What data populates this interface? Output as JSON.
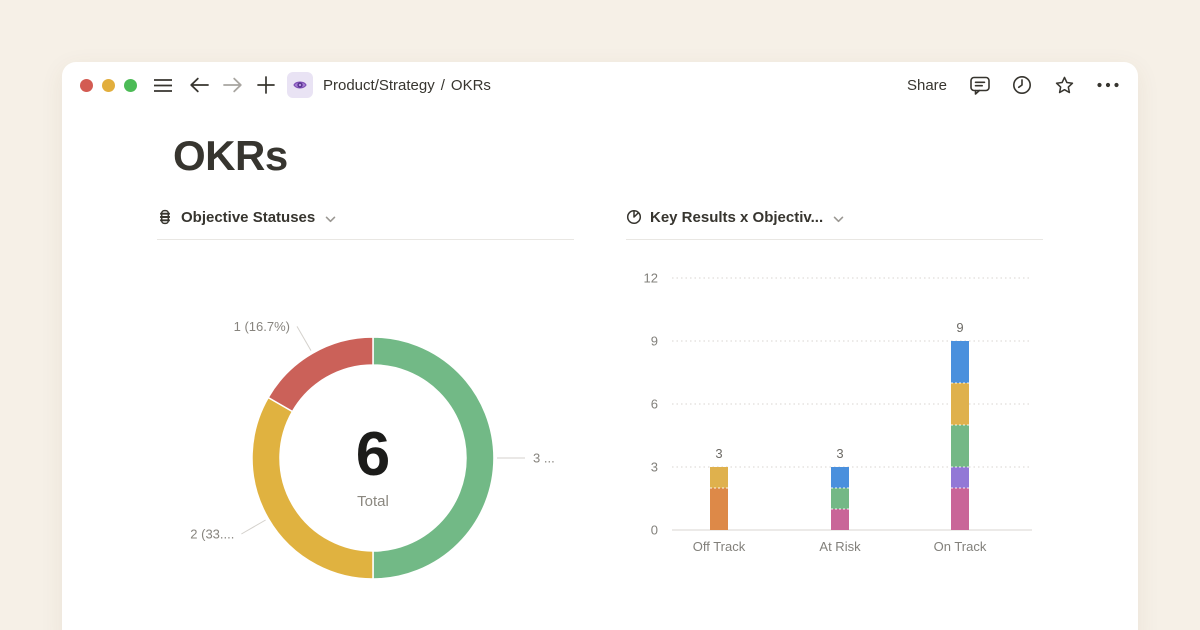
{
  "window": {
    "controls": {
      "close": "#d35b52",
      "minimize": "#e2ae3d",
      "zoom": "#4cbb56"
    },
    "nav": {
      "breadcrumb_path": "Product/Strategy",
      "breadcrumb_separator": "/",
      "breadcrumb_current": "OKRs"
    },
    "actions": {
      "share_label": "Share"
    }
  },
  "page": {
    "title": "OKRs"
  },
  "panels": [
    {
      "title": "Objective Statuses",
      "icon": "traffic-light-icon"
    },
    {
      "title": "Key Results x Objectiv...",
      "icon": "pie-chart-icon"
    }
  ],
  "chart_data": [
    {
      "type": "pie",
      "subtype": "donut",
      "title": "Objective Statuses",
      "center_value": "6",
      "center_label": "Total",
      "slices": [
        {
          "value": 3,
          "pct": 50.0,
          "color": "#72b986",
          "label": "3 ..."
        },
        {
          "value": 2,
          "pct": 33.3,
          "color": "#e0b240",
          "label": "2 (33...."
        },
        {
          "value": 1,
          "pct": 16.7,
          "color": "#cb6159",
          "label": "1 (16.7%)"
        }
      ]
    },
    {
      "type": "bar",
      "stacked": true,
      "title": "Key Results x Objectiv...",
      "categories": [
        "Off Track",
        "At Risk",
        "On Track"
      ],
      "totals": [
        "3",
        "3",
        "9"
      ],
      "ylim": [
        0,
        12
      ],
      "yticks": [
        0,
        3,
        6,
        9,
        12
      ],
      "grid": "dotted",
      "bars": [
        {
          "segments": [
            {
              "value": 2,
              "color": "#dd8948"
            },
            {
              "value": 1,
              "color": "#dfb14d"
            }
          ]
        },
        {
          "segments": [
            {
              "value": 1,
              "color": "#c96598"
            },
            {
              "value": 1,
              "color": "#74b886"
            },
            {
              "value": 1,
              "color": "#4a90dd"
            }
          ]
        },
        {
          "segments": [
            {
              "value": 2,
              "color": "#c96598"
            },
            {
              "value": 1,
              "color": "#9278d6"
            },
            {
              "value": 2,
              "color": "#74b886"
            },
            {
              "value": 2,
              "color": "#dfb14d"
            },
            {
              "value": 2,
              "color": "#4a90dd"
            }
          ]
        }
      ]
    }
  ]
}
